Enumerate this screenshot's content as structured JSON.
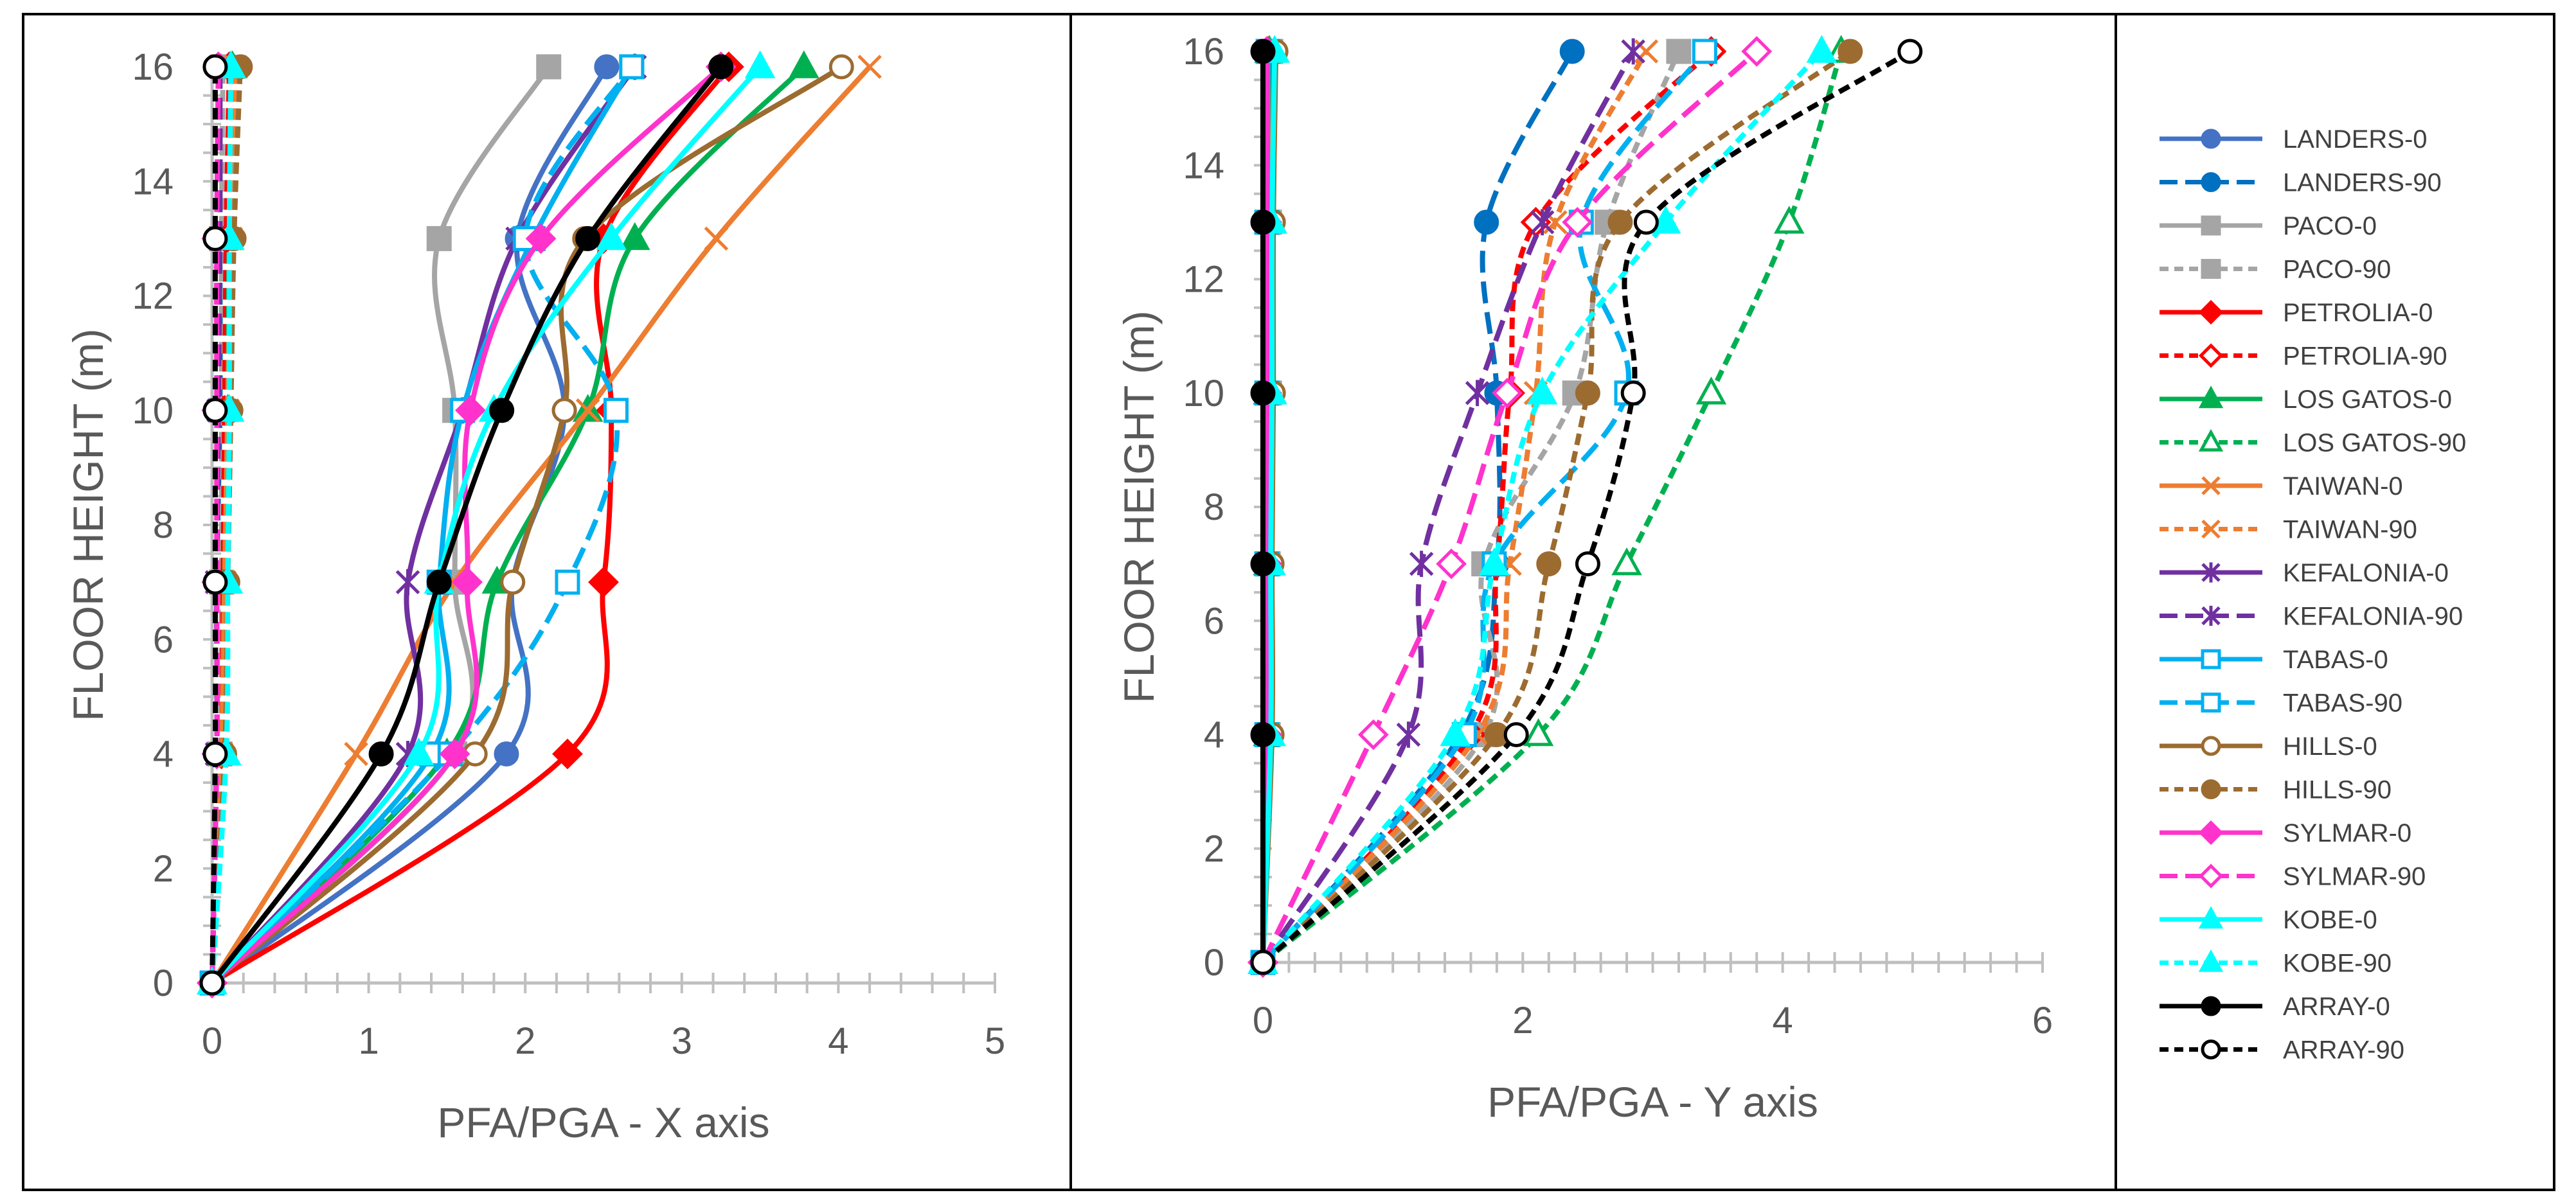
{
  "chart_data": [
    {
      "type": "line",
      "panel": "left",
      "xlabel": "PFA/PGA - X axis",
      "ylabel": "FLOOR HEIGHT (m)",
      "xlim": [
        0,
        5
      ],
      "ylim": [
        0,
        16
      ],
      "xticks": [
        "0",
        "1",
        "2",
        "3",
        "4",
        "5"
      ],
      "yticks": [
        "0",
        "2",
        "4",
        "6",
        "8",
        "10",
        "12",
        "14",
        "16"
      ],
      "y": [
        0,
        4,
        7,
        10,
        13,
        16
      ],
      "series": [
        {
          "name": "LANDERS-0",
          "x": [
            0,
            1.88,
            1.92,
            2.25,
            1.95,
            2.52
          ]
        },
        {
          "name": "LANDERS-90",
          "x": [
            0,
            0.03,
            0.03,
            0.05,
            0.05,
            0.05
          ]
        },
        {
          "name": "PACO-0",
          "x": [
            0,
            1.55,
            1.55,
            1.55,
            1.45,
            2.15
          ]
        },
        {
          "name": "PACO-90",
          "x": [
            0,
            0.05,
            0.06,
            0.06,
            0.06,
            0.07
          ]
        },
        {
          "name": "PETROLIA-0",
          "x": [
            0,
            2.27,
            2.5,
            2.55,
            2.5,
            3.3
          ]
        },
        {
          "name": "PETROLIA-90",
          "x": [
            0,
            0.06,
            0.07,
            0.08,
            0.09,
            0.11
          ]
        },
        {
          "name": "LOS GATOS-0",
          "x": [
            0,
            1.5,
            1.82,
            2.4,
            2.7,
            3.78
          ]
        },
        {
          "name": "LOS GATOS-90",
          "x": [
            0,
            0.07,
            0.08,
            0.1,
            0.11,
            0.13
          ]
        },
        {
          "name": "TAIWAN-0",
          "x": [
            0,
            0.92,
            1.55,
            2.4,
            3.22,
            4.2
          ]
        },
        {
          "name": "TAIWAN-90",
          "x": [
            0,
            0.06,
            0.08,
            0.1,
            0.12,
            0.15
          ]
        },
        {
          "name": "KEFALONIA-0",
          "x": [
            0,
            1.25,
            1.25,
            1.6,
            1.95,
            2.7
          ]
        },
        {
          "name": "KEFALONIA-90",
          "x": [
            0,
            0.03,
            0.03,
            0.04,
            0.05,
            0.05
          ]
        },
        {
          "name": "TABAS-0",
          "x": [
            0,
            1.4,
            1.45,
            1.6,
            2.05,
            2.68
          ]
        },
        {
          "name": "TABAS-90",
          "x": [
            0,
            1.52,
            2.27,
            2.58,
            2.0,
            2.68
          ]
        },
        {
          "name": "HILLS-0",
          "x": [
            0,
            1.68,
            1.92,
            2.25,
            2.38,
            4.02
          ]
        },
        {
          "name": "HILLS-90",
          "x": [
            0,
            0.08,
            0.1,
            0.12,
            0.14,
            0.18
          ]
        },
        {
          "name": "SYLMAR-0",
          "x": [
            0,
            1.55,
            1.63,
            1.65,
            2.1,
            3.25
          ]
        },
        {
          "name": "SYLMAR-90",
          "x": [
            0,
            0.03,
            0.03,
            0.03,
            0.03,
            0.04
          ]
        },
        {
          "name": "KOBE-0",
          "x": [
            0,
            1.32,
            1.45,
            1.8,
            2.55,
            3.5
          ]
        },
        {
          "name": "KOBE-90",
          "x": [
            0,
            0.09,
            0.1,
            0.11,
            0.11,
            0.12
          ]
        },
        {
          "name": "ARRAY-0",
          "x": [
            0,
            1.08,
            1.45,
            1.85,
            2.4,
            3.25
          ]
        },
        {
          "name": "ARRAY-90",
          "x": [
            0,
            0.02,
            0.02,
            0.02,
            0.02,
            0.02
          ]
        }
      ]
    },
    {
      "type": "line",
      "panel": "middle",
      "xlabel": "PFA/PGA - Y axis",
      "ylabel": "FLOOR HEIGHT (m)",
      "xlim": [
        0,
        6
      ],
      "ylim": [
        0,
        16
      ],
      "xticks": [
        "0",
        "2",
        "4",
        "6"
      ],
      "yticks": [
        "0",
        "2",
        "4",
        "6",
        "8",
        "10",
        "12",
        "14",
        "16"
      ],
      "y": [
        0,
        4,
        7,
        10,
        13,
        16
      ],
      "series": [
        {
          "name": "LANDERS-0",
          "x": [
            0,
            0.02,
            0.02,
            0.02,
            0.02,
            0.02
          ]
        },
        {
          "name": "LANDERS-90",
          "x": [
            0,
            1.52,
            1.8,
            1.8,
            1.72,
            2.38
          ]
        },
        {
          "name": "PACO-0",
          "x": [
            0,
            0.04,
            0.04,
            0.05,
            0.05,
            0.06
          ]
        },
        {
          "name": "PACO-90",
          "x": [
            0,
            1.7,
            1.7,
            2.4,
            2.65,
            3.2
          ]
        },
        {
          "name": "PETROLIA-0",
          "x": [
            0,
            0.03,
            0.03,
            0.03,
            0.04,
            0.04
          ]
        },
        {
          "name": "PETROLIA-90",
          "x": [
            0,
            1.6,
            1.8,
            1.9,
            2.1,
            3.45
          ]
        },
        {
          "name": "LOS GATOS-0",
          "x": [
            0,
            0.04,
            0.04,
            0.04,
            0.05,
            0.05
          ]
        },
        {
          "name": "LOS GATOS-90",
          "x": [
            0,
            2.12,
            2.8,
            3.45,
            4.05,
            4.45
          ]
        },
        {
          "name": "TAIWAN-0",
          "x": [
            0,
            0.03,
            0.03,
            0.04,
            0.04,
            0.04
          ]
        },
        {
          "name": "TAIWAN-90",
          "x": [
            0,
            1.65,
            1.9,
            2.1,
            2.25,
            2.95
          ]
        },
        {
          "name": "KEFALONIA-0",
          "x": [
            0,
            0.03,
            0.03,
            0.03,
            0.03,
            0.04
          ]
        },
        {
          "name": "KEFALONIA-90",
          "x": [
            0,
            1.12,
            1.22,
            1.65,
            2.15,
            2.85
          ]
        },
        {
          "name": "TABAS-0",
          "x": [
            0,
            0.03,
            0.03,
            0.03,
            0.03,
            0.04
          ]
        },
        {
          "name": "TABAS-90",
          "x": [
            0,
            1.55,
            1.78,
            2.8,
            2.45,
            3.4
          ]
        },
        {
          "name": "HILLS-0",
          "x": [
            0,
            0.07,
            0.07,
            0.08,
            0.08,
            0.1
          ]
        },
        {
          "name": "HILLS-90",
          "x": [
            0,
            1.8,
            2.2,
            2.5,
            2.75,
            4.52
          ]
        },
        {
          "name": "SYLMAR-0",
          "x": [
            0,
            0.03,
            0.03,
            0.03,
            0.03,
            0.03
          ]
        },
        {
          "name": "SYLMAR-90",
          "x": [
            0,
            0.85,
            1.45,
            1.88,
            2.42,
            3.8
          ]
        },
        {
          "name": "KOBE-0",
          "x": [
            0,
            0.06,
            0.06,
            0.07,
            0.07,
            0.09
          ]
        },
        {
          "name": "KOBE-90",
          "x": [
            0,
            1.48,
            1.78,
            2.15,
            3.1,
            4.3
          ]
        },
        {
          "name": "ARRAY-0",
          "x": [
            0,
            0.0,
            0.0,
            0.0,
            0.0,
            0.0
          ]
        },
        {
          "name": "ARRAY-90",
          "x": [
            0,
            1.95,
            2.5,
            2.85,
            2.95,
            4.98
          ]
        }
      ]
    }
  ],
  "legend": [
    {
      "name": "LANDERS-0",
      "color": "#4472C4",
      "dash": "solid",
      "marker": "circle",
      "filled": true
    },
    {
      "name": "LANDERS-90",
      "color": "#0070C0",
      "dash": "longdash",
      "marker": "circle",
      "filled": true
    },
    {
      "name": "PACO-0",
      "color": "#A5A5A5",
      "dash": "solid",
      "marker": "square",
      "filled": true
    },
    {
      "name": "PACO-90",
      "color": "#A5A5A5",
      "dash": "dash",
      "marker": "square",
      "filled": true
    },
    {
      "name": "PETROLIA-0",
      "color": "#FF0000",
      "dash": "solid",
      "marker": "diamond",
      "filled": true
    },
    {
      "name": "PETROLIA-90",
      "color": "#FF0000",
      "dash": "dash",
      "marker": "diamond",
      "filled": false
    },
    {
      "name": "LOS GATOS-0",
      "color": "#00B050",
      "dash": "solid",
      "marker": "triangle",
      "filled": true
    },
    {
      "name": "LOS GATOS-90",
      "color": "#00B050",
      "dash": "dash",
      "marker": "triangle",
      "filled": false
    },
    {
      "name": "TAIWAN-0",
      "color": "#ED7D31",
      "dash": "solid",
      "marker": "x",
      "filled": false
    },
    {
      "name": "TAIWAN-90",
      "color": "#ED7D31",
      "dash": "dash",
      "marker": "x",
      "filled": false
    },
    {
      "name": "KEFALONIA-0",
      "color": "#7030A0",
      "dash": "solid",
      "marker": "star",
      "filled": false
    },
    {
      "name": "KEFALONIA-90",
      "color": "#7030A0",
      "dash": "longdash",
      "marker": "star",
      "filled": false
    },
    {
      "name": "TABAS-0",
      "color": "#00B0F0",
      "dash": "solid",
      "marker": "square-open",
      "filled": false
    },
    {
      "name": "TABAS-90",
      "color": "#00B0F0",
      "dash": "longdash",
      "marker": "square-open",
      "filled": false
    },
    {
      "name": "HILLS-0",
      "color": "#9C6B30",
      "dash": "solid",
      "marker": "circle-open",
      "filled": false
    },
    {
      "name": "HILLS-90",
      "color": "#9C6B30",
      "dash": "dash",
      "marker": "circle",
      "filled": true
    },
    {
      "name": "SYLMAR-0",
      "color": "#FF33CC",
      "dash": "solid",
      "marker": "diamond",
      "filled": true
    },
    {
      "name": "SYLMAR-90",
      "color": "#FF33CC",
      "dash": "longdash",
      "marker": "diamond",
      "filled": false
    },
    {
      "name": "KOBE-0",
      "color": "#00FFFF",
      "dash": "solid",
      "marker": "triangle",
      "filled": true
    },
    {
      "name": "KOBE-90",
      "color": "#00FFFF",
      "dash": "dash",
      "marker": "triangle",
      "filled": true
    },
    {
      "name": "ARRAY-0",
      "color": "#000000",
      "dash": "solid",
      "marker": "circle",
      "filled": true
    },
    {
      "name": "ARRAY-90",
      "color": "#000000",
      "dash": "dash",
      "marker": "circle-open",
      "filled": false
    }
  ]
}
